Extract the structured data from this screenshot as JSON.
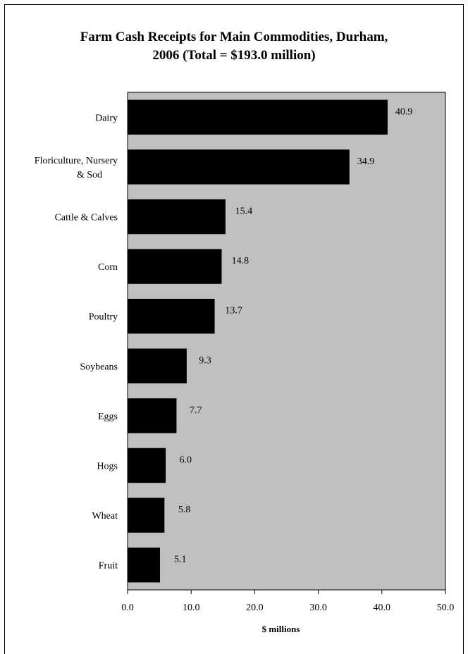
{
  "chart_data": {
    "type": "bar",
    "orientation": "horizontal",
    "title_line1": "Farm Cash Receipts for Main Commodities, Durham,",
    "title_line2": "2006 (Total = $193.0 million)",
    "xlabel": "$ millions",
    "ylabel": "",
    "xlim": [
      0,
      50
    ],
    "xticks": [
      "0.0",
      "10.0",
      "20.0",
      "30.0",
      "40.0",
      "50.0"
    ],
    "grid": false,
    "legend": "none",
    "plot_background": "#c0c0c0",
    "bar_color": "#000000",
    "categories": [
      [
        "Dairy"
      ],
      [
        "Floriculture, Nursery",
        "& Sod"
      ],
      [
        "Cattle & Calves"
      ],
      [
        "Corn"
      ],
      [
        "Poultry"
      ],
      [
        "Soybeans"
      ],
      [
        "Eggs"
      ],
      [
        "Hogs"
      ],
      [
        "Wheat"
      ],
      [
        "Fruit"
      ]
    ],
    "values": [
      40.9,
      34.9,
      15.4,
      14.8,
      13.7,
      9.3,
      7.7,
      6.0,
      5.8,
      5.1
    ],
    "value_labels": [
      "40.9",
      "34.9",
      "15.4",
      "14.8",
      "13.7",
      "9.3",
      "7.7",
      "6.0",
      "5.8",
      "5.1"
    ]
  }
}
